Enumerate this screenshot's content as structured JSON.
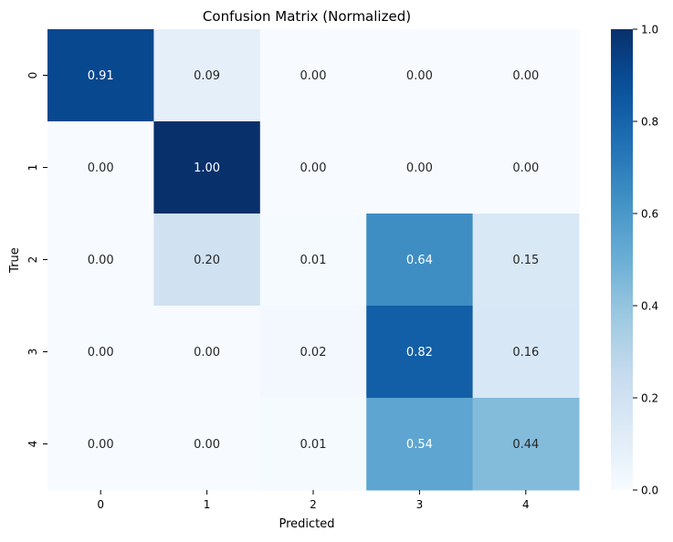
{
  "chart_data": {
    "type": "heatmap",
    "title": "Confusion Matrix (Normalized)",
    "xlabel": "Predicted",
    "ylabel": "True",
    "x_categories": [
      "0",
      "1",
      "2",
      "3",
      "4"
    ],
    "y_categories": [
      "0",
      "1",
      "2",
      "3",
      "4"
    ],
    "values": [
      [
        0.91,
        0.09,
        0.0,
        0.0,
        0.0
      ],
      [
        0.0,
        1.0,
        0.0,
        0.0,
        0.0
      ],
      [
        0.0,
        0.2,
        0.01,
        0.64,
        0.15
      ],
      [
        0.0,
        0.0,
        0.02,
        0.82,
        0.16
      ],
      [
        0.0,
        0.0,
        0.01,
        0.54,
        0.44
      ]
    ],
    "value_format": "0.00",
    "colormap": "Blues",
    "color_range": [
      0.0,
      1.0
    ],
    "colorbar_ticks": [
      "0.0",
      "0.2",
      "0.4",
      "0.6",
      "0.8",
      "1.0"
    ],
    "colorbar_tick_values": [
      0.0,
      0.2,
      0.4,
      0.6,
      0.8,
      1.0
    ],
    "grid": false
  }
}
